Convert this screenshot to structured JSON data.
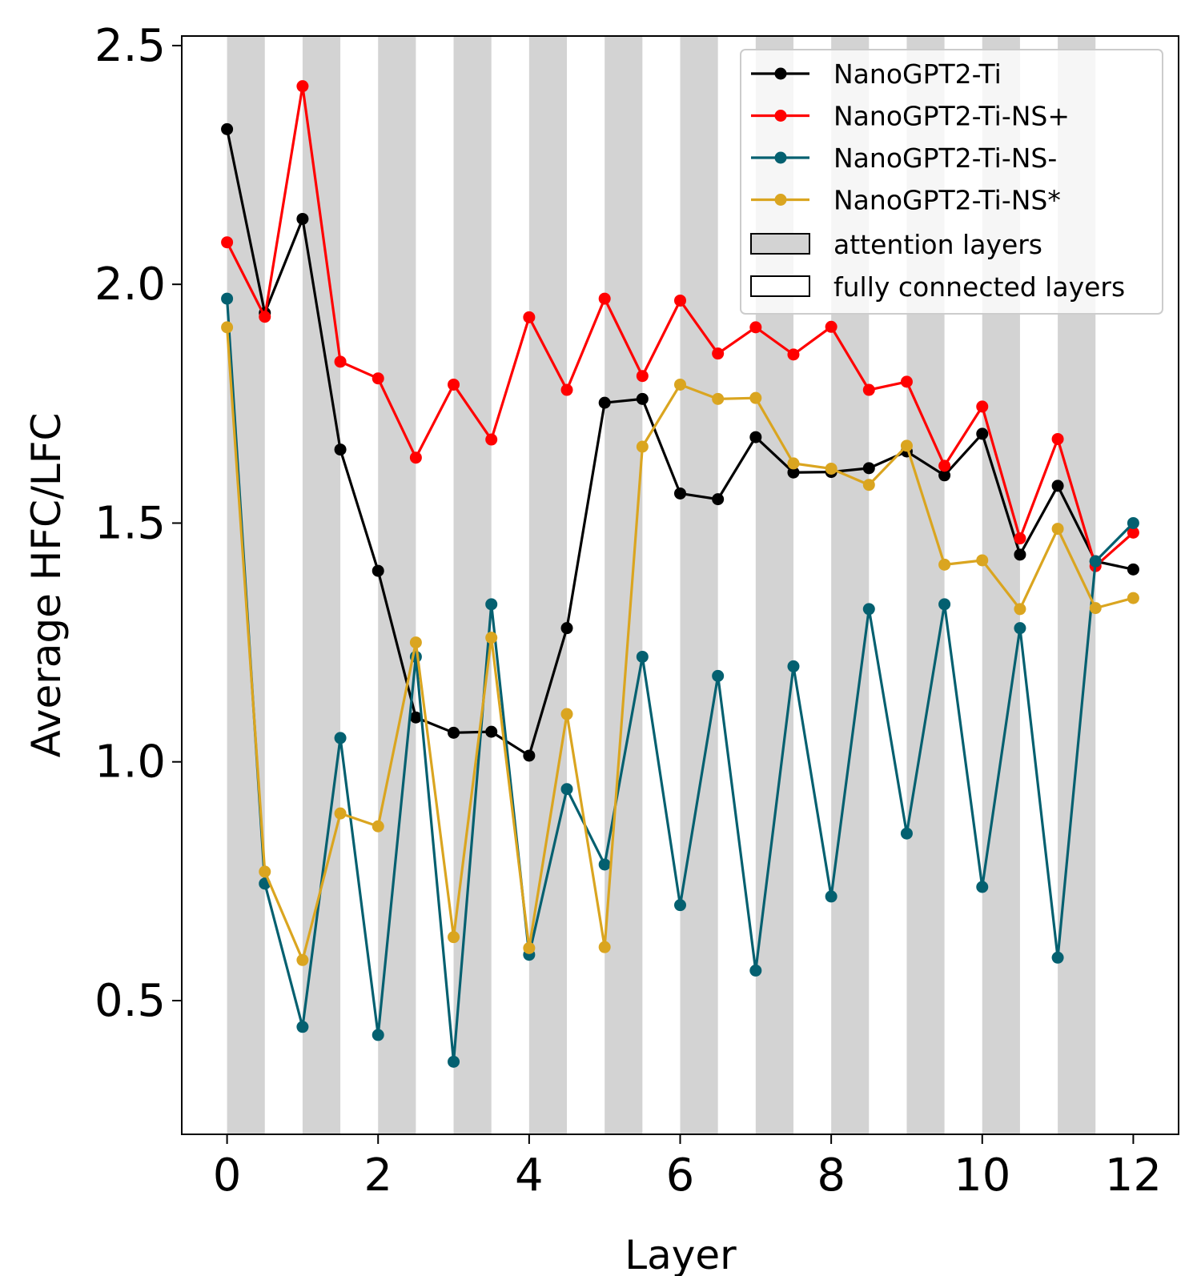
{
  "chart_data": {
    "type": "line",
    "title": "",
    "xlabel": "Layer",
    "ylabel": "Average HFC/LFC",
    "xlim": [
      -0.6,
      12.6
    ],
    "ylim": [
      0.22,
      2.52
    ],
    "xticks": [
      0,
      2,
      4,
      6,
      8,
      10,
      12
    ],
    "yticks": [
      0.5,
      1.0,
      1.5,
      2.0,
      2.5
    ],
    "ytick_labels": [
      "0.5",
      "1.0",
      "1.5",
      "2.0",
      "2.5"
    ],
    "x": [
      0,
      0.5,
      1,
      1.5,
      2,
      2.5,
      3,
      3.5,
      4,
      4.5,
      5,
      5.5,
      6,
      6.5,
      7,
      7.5,
      8,
      8.5,
      9,
      9.5,
      10,
      10.5,
      11,
      11.5,
      12
    ],
    "series": [
      {
        "name": "NanoGPT2-Ti",
        "color": "#000000",
        "values": [
          2.325,
          1.94,
          2.137,
          1.654,
          1.4,
          1.093,
          1.061,
          1.063,
          1.013,
          1.28,
          1.752,
          1.76,
          1.562,
          1.55,
          1.68,
          1.606,
          1.607,
          1.615,
          1.65,
          1.6,
          1.687,
          1.434,
          1.578,
          1.42,
          1.403
        ]
      },
      {
        "name": "NanoGPT2-Ti-NS+",
        "color": "#ff0000",
        "values": [
          2.088,
          1.932,
          2.415,
          1.838,
          1.803,
          1.637,
          1.79,
          1.675,
          1.931,
          1.779,
          1.97,
          1.808,
          1.966,
          1.855,
          1.91,
          1.853,
          1.911,
          1.779,
          1.796,
          1.62,
          1.744,
          1.468,
          1.676,
          1.41,
          1.48
        ]
      },
      {
        "name": "NanoGPT2-Ti-NS-",
        "color": "#046070",
        "values": [
          1.97,
          0.745,
          0.445,
          1.05,
          0.428,
          1.22,
          0.372,
          1.33,
          0.596,
          0.943,
          0.785,
          1.22,
          0.7,
          1.18,
          0.563,
          1.2,
          0.718,
          1.32,
          0.85,
          1.33,
          0.738,
          1.28,
          0.59,
          1.42,
          1.5
        ]
      },
      {
        "name": "NanoGPT2-Ti-NS*",
        "color": "#daa520",
        "values": [
          1.91,
          0.77,
          0.585,
          0.892,
          0.865,
          1.25,
          0.633,
          1.26,
          0.61,
          1.1,
          0.612,
          1.66,
          1.79,
          1.76,
          1.762,
          1.625,
          1.614,
          1.58,
          1.662,
          1.413,
          1.422,
          1.32,
          1.488,
          1.322,
          1.343
        ]
      }
    ],
    "bands": {
      "attention_ranges": [
        [
          0,
          0.5
        ],
        [
          1,
          1.5
        ],
        [
          2,
          2.5
        ],
        [
          3,
          3.5
        ],
        [
          4,
          4.5
        ],
        [
          5,
          5.5
        ],
        [
          6,
          6.5
        ],
        [
          7,
          7.5
        ],
        [
          8,
          8.5
        ],
        [
          9,
          9.5
        ],
        [
          10,
          10.5
        ],
        [
          11,
          11.5
        ]
      ],
      "attention_color": "#d3d3d3",
      "attention_label": "attention layers",
      "fc_label": "fully connected layers"
    },
    "legend_position": "top-right",
    "grid": false
  }
}
